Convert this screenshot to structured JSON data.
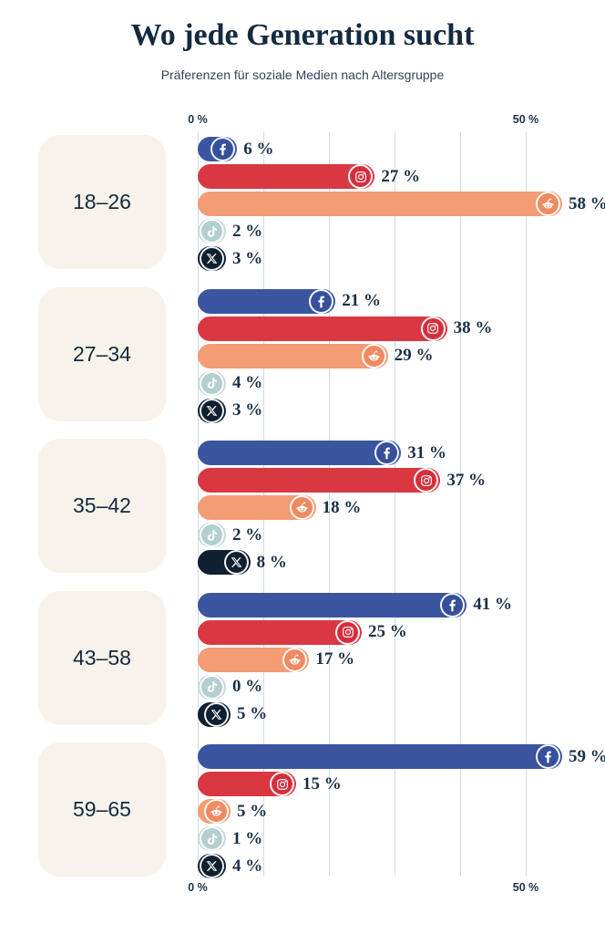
{
  "chart_data": {
    "type": "bar",
    "orientation": "horizontal",
    "title": "Wo jede Generation sucht",
    "subtitle": "Präferenzen für soziale Medien nach Altersgruppe",
    "categories": [
      "18–26",
      "27–34",
      "35–42",
      "43–58",
      "59–65"
    ],
    "series": [
      {
        "name": "Facebook",
        "icon": "facebook-icon",
        "color": "#3c55a0",
        "icon_color": "#36509b",
        "values": [
          6,
          21,
          31,
          41,
          59
        ]
      },
      {
        "name": "Instagram",
        "icon": "instagram-icon",
        "color": "#d93843",
        "icon_color": "#d32f3d",
        "values": [
          27,
          38,
          37,
          25,
          15
        ]
      },
      {
        "name": "Reddit",
        "icon": "reddit-icon",
        "color": "#f49c74",
        "icon_color": "#ef8a61",
        "values": [
          58,
          29,
          18,
          17,
          5
        ]
      },
      {
        "name": "TikTok",
        "icon": "tiktok-icon",
        "color": "#c6dad8",
        "icon_color": "#b3cfce",
        "values": [
          2,
          4,
          2,
          0,
          1
        ]
      },
      {
        "name": "X",
        "icon": "x-icon",
        "color": "#0f2030",
        "icon_color": "#0f2030",
        "values": [
          3,
          3,
          8,
          5,
          4
        ]
      }
    ],
    "value_suffix": " %",
    "axis_ticks": [
      {
        "label": "0 %",
        "percent": 0
      },
      {
        "label": "50 %",
        "percent": 50
      }
    ],
    "gridlines_percent": [
      0,
      10,
      20,
      30,
      40,
      50
    ],
    "xlim": [
      0,
      62
    ],
    "legend": "none",
    "grid": "vertical"
  }
}
